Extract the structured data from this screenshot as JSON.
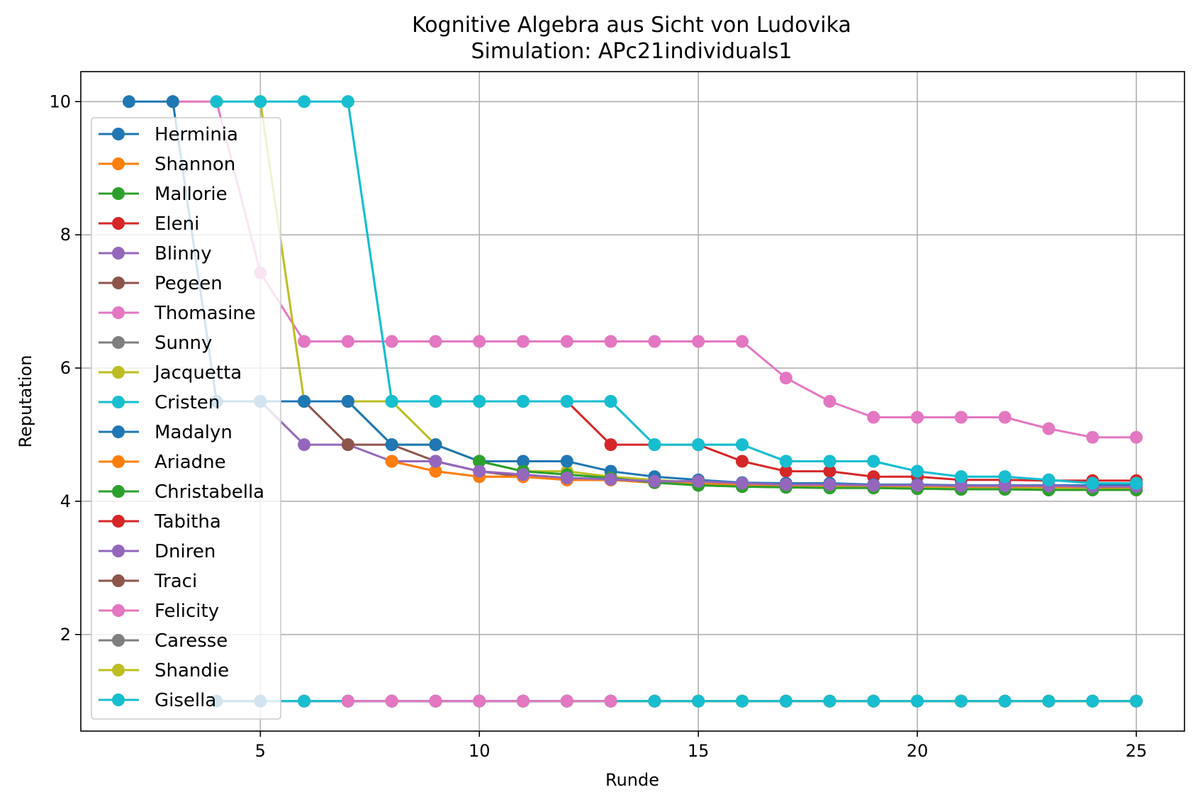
{
  "chart_data": {
    "type": "line",
    "title": "Kognitive Algebra aus Sicht von Ludovika",
    "subtitle": "Simulation: APc21individuals1",
    "xlabel": "Runde",
    "ylabel": "Reputation",
    "xlim": [
      0.9,
      26.1
    ],
    "ylim": [
      0.55,
      10.45
    ],
    "xticks": [
      5,
      10,
      15,
      20,
      25
    ],
    "yticks": [
      2,
      4,
      6,
      8,
      10
    ],
    "grid": true,
    "legend_position": "left",
    "series": [
      {
        "name": "Herminia",
        "color": "#1f77b4",
        "x": [
          2,
          3
        ],
        "y": [
          10,
          10
        ]
      },
      {
        "name": "Shannon",
        "color": "#ff7f0e",
        "x": [
          8,
          9,
          10,
          11,
          12,
          13,
          14,
          15,
          16,
          17,
          18,
          19,
          20,
          21,
          22,
          23,
          24,
          25
        ],
        "y": [
          4.6,
          4.45,
          4.37,
          4.37,
          4.32,
          4.32,
          4.28,
          4.25,
          4.24,
          4.23,
          4.22,
          4.22,
          4.21,
          4.21,
          4.21,
          4.2,
          4.2,
          4.2
        ]
      },
      {
        "name": "Mallorie",
        "color": "#2ca02c",
        "x": [
          5,
          6,
          7,
          8,
          9,
          10,
          11,
          12,
          13,
          14,
          15,
          16,
          17,
          18,
          19,
          20,
          21,
          22,
          23,
          24,
          25
        ],
        "y": [
          5.5,
          5.5,
          5.5,
          4.85,
          4.85,
          4.6,
          4.45,
          4.4,
          4.35,
          4.28,
          4.24,
          4.22,
          4.21,
          4.2,
          4.2,
          4.19,
          4.18,
          4.18,
          4.17,
          4.17,
          4.17
        ]
      },
      {
        "name": "Eleni",
        "color": "#d62728",
        "x": [
          6,
          7,
          8,
          9,
          10,
          11,
          12,
          13,
          14,
          15,
          16,
          17,
          18,
          19,
          20,
          21,
          22,
          23,
          24,
          25
        ],
        "y": [
          5.5,
          5.5,
          5.5,
          5.5,
          5.5,
          5.5,
          5.5,
          4.85,
          4.85,
          4.85,
          4.6,
          4.45,
          4.45,
          4.37,
          4.37,
          4.32,
          4.32,
          4.31,
          4.31,
          4.31
        ]
      },
      {
        "name": "Blinny",
        "color": "#9467bd",
        "x": [
          4,
          5,
          6,
          7,
          8,
          9,
          10,
          11,
          12,
          13,
          14,
          15,
          16,
          17,
          18,
          19,
          20,
          21,
          22,
          23,
          24,
          25
        ],
        "y": [
          5.5,
          5.5,
          4.85,
          4.85,
          4.6,
          4.6,
          4.45,
          4.4,
          4.35,
          4.33,
          4.3,
          4.3,
          4.27,
          4.25,
          4.25,
          4.24,
          4.24,
          4.23,
          4.23,
          4.23,
          4.22,
          4.22
        ]
      },
      {
        "name": "Pegeen",
        "color": "#8c564b",
        "x": [
          6,
          7,
          8,
          9,
          10,
          11,
          12,
          13,
          14,
          15,
          16,
          17,
          18,
          19,
          20,
          21,
          22,
          23,
          24,
          25
        ],
        "y": [
          5.5,
          4.85,
          4.85,
          4.6,
          4.45,
          4.37,
          4.32,
          4.32,
          4.28,
          4.27,
          4.27,
          4.26,
          4.26,
          4.24,
          4.24,
          4.23,
          4.23,
          4.23,
          4.23,
          4.23
        ]
      },
      {
        "name": "Thomasine",
        "color": "#e377c2",
        "x": [
          3,
          4,
          5,
          6,
          7,
          8,
          9,
          10,
          11,
          12,
          13,
          14,
          15,
          16,
          17,
          18,
          19,
          20,
          21,
          22,
          23,
          24,
          25
        ],
        "y": [
          10,
          10,
          7.43,
          6.4,
          6.4,
          6.4,
          6.4,
          6.4,
          6.4,
          6.4,
          6.4,
          6.4,
          6.4,
          6.4,
          5.85,
          5.5,
          5.26,
          5.26,
          5.26,
          5.26,
          5.09,
          4.96,
          4.96
        ]
      },
      {
        "name": "Sunny",
        "color": "#7f7f7f",
        "x": [
          9,
          10,
          11,
          12,
          13,
          14,
          15,
          16,
          17,
          18,
          19,
          20,
          21,
          22,
          23,
          24,
          25
        ],
        "y": [
          1,
          1,
          1,
          1,
          1,
          1,
          1,
          1,
          1,
          1,
          1,
          1,
          1,
          1,
          1,
          1,
          1
        ]
      },
      {
        "name": "Jacquetta",
        "color": "#bcbd22",
        "x": [
          5,
          6,
          7,
          8,
          9,
          10,
          11,
          12,
          13,
          14,
          15,
          16,
          17,
          18,
          19,
          20,
          21,
          22,
          23,
          24,
          25
        ],
        "y": [
          10,
          5.5,
          5.5,
          5.5,
          4.85,
          4.6,
          4.45,
          4.45,
          4.37,
          4.32,
          4.28,
          4.25,
          4.24,
          4.23,
          4.22,
          4.21,
          4.2,
          4.2,
          4.19,
          4.19,
          4.19
        ]
      },
      {
        "name": "Cristen",
        "color": "#17becf",
        "x": [
          7,
          8,
          9,
          10,
          11,
          12,
          13,
          14,
          15,
          16,
          17,
          18,
          19,
          20,
          21,
          22,
          23,
          24,
          25
        ],
        "y": [
          10,
          5.5,
          5.5,
          5.5,
          5.5,
          5.5,
          5.5,
          4.85,
          4.85,
          4.85,
          4.6,
          4.6,
          4.6,
          4.45,
          4.37,
          4.37,
          4.32,
          4.27,
          4.27
        ]
      },
      {
        "name": "Madalyn",
        "color": "#1f77b4",
        "x": [
          3,
          4,
          5,
          6,
          7,
          8,
          9,
          10,
          11,
          12,
          13,
          14,
          15,
          16,
          17,
          18,
          19,
          20,
          21,
          22,
          23,
          24,
          25
        ],
        "y": [
          10,
          5.5,
          5.5,
          5.5,
          5.5,
          4.85,
          4.85,
          4.6,
          4.6,
          4.6,
          4.45,
          4.37,
          4.32,
          4.28,
          4.27,
          4.27,
          4.25,
          4.25,
          4.24,
          4.24,
          4.24,
          4.24,
          4.24
        ]
      },
      {
        "name": "Ariadne",
        "color": "#ff7f0e",
        "x": [
          8,
          9,
          10,
          11,
          12,
          13,
          14,
          15,
          16,
          17,
          18,
          19,
          20,
          21,
          22,
          23,
          24,
          25
        ],
        "y": [
          4.6,
          4.45,
          4.37,
          4.37,
          4.32,
          4.32,
          4.28,
          4.26,
          4.25,
          4.24,
          4.24,
          4.23,
          4.23,
          4.22,
          4.22,
          4.22,
          4.21,
          4.21
        ]
      },
      {
        "name": "Christabella",
        "color": "#2ca02c",
        "x": [
          10,
          11,
          12,
          13,
          14,
          15,
          16,
          17,
          18,
          19,
          20,
          21,
          22,
          23,
          24,
          25
        ],
        "y": [
          4.6,
          4.45,
          4.4,
          4.35,
          4.28,
          4.24,
          4.22,
          4.21,
          4.2,
          4.2,
          4.19,
          4.18,
          4.18,
          4.17,
          4.17,
          4.17
        ]
      },
      {
        "name": "Tabitha",
        "color": "#d62728",
        "x": [
          6,
          7,
          8,
          9,
          10,
          11,
          12,
          13,
          14,
          15,
          16,
          17,
          18,
          19,
          20,
          21,
          22,
          23,
          24,
          25
        ],
        "y": [
          1,
          1,
          1,
          1,
          1,
          1,
          1,
          1,
          1,
          1,
          1,
          1,
          1,
          1,
          1,
          1,
          1,
          1,
          1,
          1
        ]
      },
      {
        "name": "Dniren",
        "color": "#9467bd",
        "x": [
          9,
          10,
          11,
          12,
          13,
          14,
          15,
          16,
          17,
          18,
          19,
          20,
          21,
          22,
          23,
          24,
          25
        ],
        "y": [
          4.6,
          4.45,
          4.4,
          4.35,
          4.33,
          4.3,
          4.3,
          4.27,
          4.25,
          4.25,
          4.24,
          4.24,
          4.23,
          4.23,
          4.23,
          4.22,
          4.22
        ]
      },
      {
        "name": "Traci",
        "color": "#8c564b",
        "x": [
          8,
          9,
          10,
          11,
          12,
          13,
          14,
          15,
          16,
          17,
          18,
          19,
          20,
          21,
          22,
          23,
          24,
          25
        ],
        "y": [
          1,
          1,
          1,
          1,
          1,
          1,
          1,
          1,
          1,
          1,
          1,
          1,
          1,
          1,
          1,
          1,
          1,
          1
        ]
      },
      {
        "name": "Felicity",
        "color": "#e377c2",
        "x": [
          7,
          8,
          9,
          10,
          11,
          12,
          13,
          14,
          15,
          16,
          17,
          18,
          19,
          20,
          21,
          22,
          23,
          24,
          25
        ],
        "y": [
          1,
          1,
          1,
          1,
          1,
          1,
          1,
          1,
          1,
          1,
          1,
          1,
          1,
          1,
          1,
          1,
          1,
          1,
          1
        ]
      },
      {
        "name": "Caresse",
        "color": "#7f7f7f",
        "x": [
          4,
          5,
          6,
          7,
          8,
          9,
          10,
          11,
          12,
          13,
          14,
          15,
          16,
          17,
          18,
          19,
          20,
          21,
          22,
          23,
          24,
          25
        ],
        "y": [
          1,
          1,
          1,
          1,
          1,
          1,
          1,
          1,
          1,
          1,
          1,
          1,
          1,
          1,
          1,
          1,
          1,
          1,
          1,
          1,
          1,
          1
        ]
      },
      {
        "name": "Shandie",
        "color": "#bcbd22",
        "x": [
          11,
          12,
          13,
          14,
          15,
          16,
          17,
          18,
          19,
          20,
          21,
          22,
          23,
          24,
          25
        ],
        "y": [
          1,
          1,
          1,
          1,
          1,
          1,
          1,
          1,
          1,
          1,
          1,
          1,
          1,
          1,
          1
        ]
      },
      {
        "name": "Gisella",
        "color": "#17becf",
        "x": [
          4,
          5,
          6,
          7,
          8,
          9,
          10,
          11,
          12,
          13,
          14,
          15,
          16,
          17,
          18,
          19,
          20,
          21,
          22,
          23,
          24,
          25
        ],
        "y": [
          10,
          10,
          10,
          10,
          5.5,
          5.5,
          5.5,
          5.5,
          5.5,
          5.5,
          4.85,
          4.85,
          4.85,
          4.6,
          4.6,
          4.6,
          4.45,
          4.37,
          4.37,
          4.32,
          4.27,
          4.27
        ]
      },
      {
        "name": "",
        "color": "#17becf",
        "x": [
          4,
          5,
          6,
          7,
          8,
          9,
          10,
          11,
          12,
          13,
          14,
          15,
          16,
          17,
          18,
          19,
          20,
          21,
          22,
          23,
          24,
          25
        ],
        "y": [
          1,
          1,
          1,
          1,
          1,
          1,
          1,
          1,
          1,
          1,
          1,
          1,
          1,
          1,
          1,
          1,
          1,
          1,
          1,
          1,
          1,
          1
        ]
      },
      {
        "name": "",
        "color": "#1f77b4",
        "x": [
          4,
          5
        ],
        "y": [
          1,
          1
        ]
      },
      {
        "name": "",
        "color": "#e377c2",
        "x": [
          7,
          8,
          9,
          10,
          11,
          12,
          13
        ],
        "y": [
          1,
          1,
          1,
          1,
          1,
          1,
          1
        ]
      }
    ]
  }
}
